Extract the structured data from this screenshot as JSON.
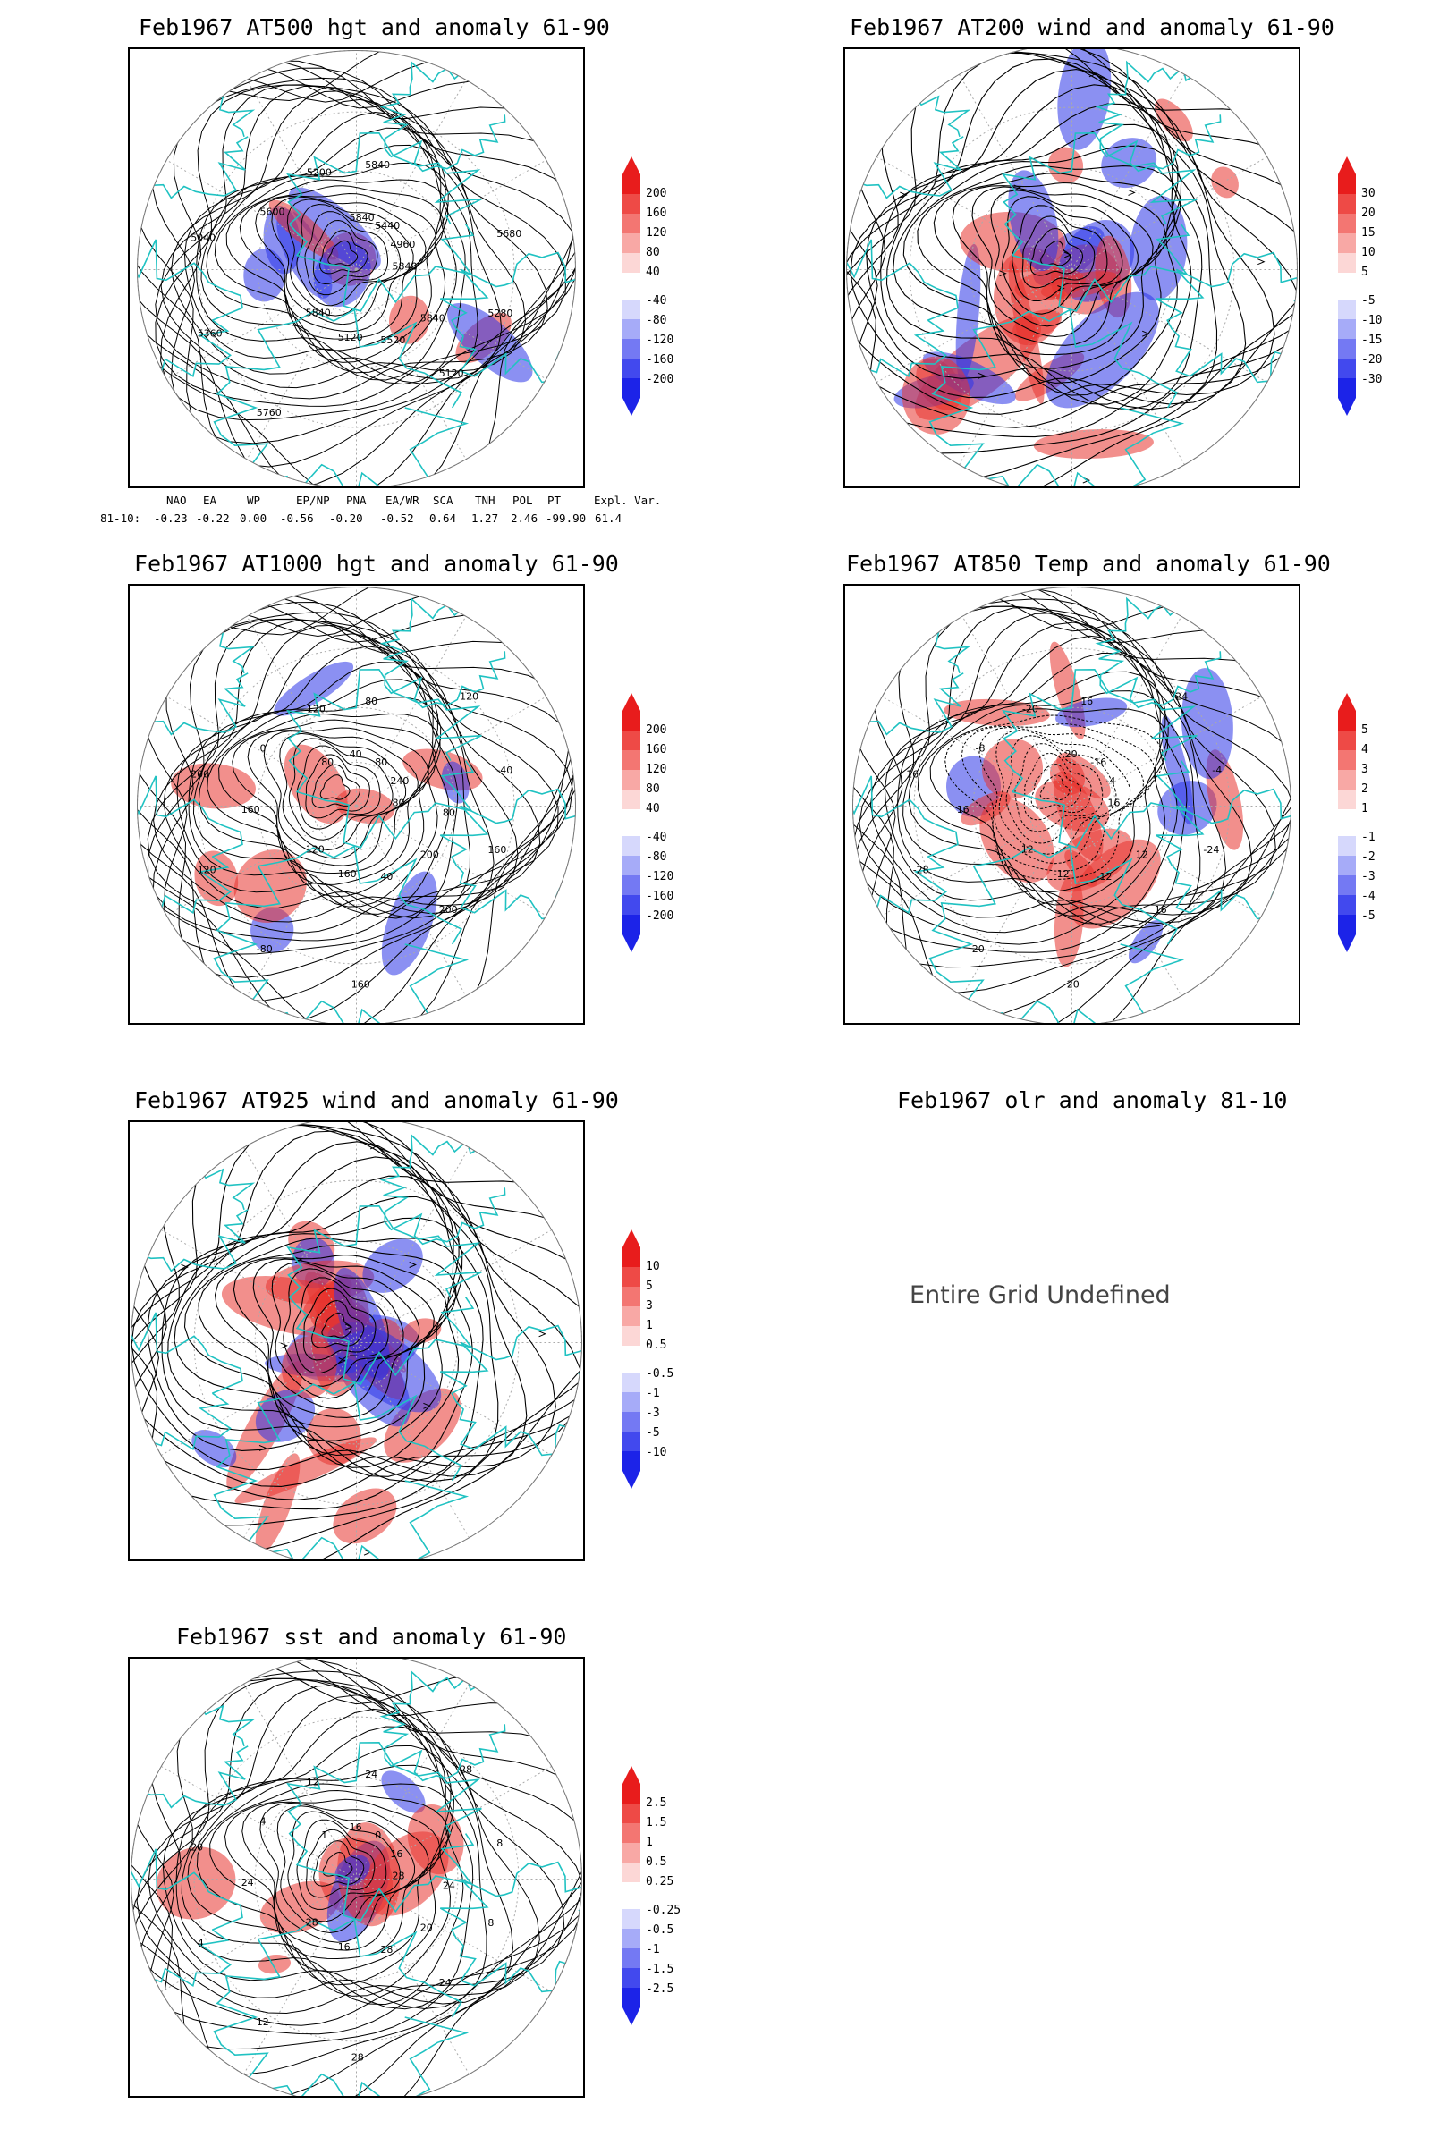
{
  "colors": {
    "coast": "#20c2c2",
    "contour": "#000000",
    "positive": "#e8332e",
    "negative": "#2b35e8",
    "grid": "#aaaaaa"
  },
  "panels": [
    {
      "id": "z500",
      "title": "Feb1967 AT500 hgt and anomaly 61-90",
      "kind": "height",
      "contour_labels": [
        "5840",
        "5840",
        "5840",
        "5120",
        "5040",
        "4960",
        "5120",
        "5200",
        "5280",
        "5360",
        "5440",
        "5520",
        "5600",
        "5680",
        "5760",
        "5840",
        "5840"
      ],
      "colorbar": [
        "200",
        "160",
        "120",
        "80",
        "40",
        "-40",
        "-80",
        "-120",
        "-160",
        "-200"
      ]
    },
    {
      "id": "u200",
      "title": "Feb1967 AT200 wind and anomaly 61-90",
      "kind": "wind",
      "contour_labels": [],
      "colorbar": [
        "30",
        "20",
        "15",
        "10",
        "5",
        "-5",
        "-10",
        "-15",
        "-20",
        "-30"
      ]
    },
    {
      "id": "z1000",
      "title": "Feb1967 AT1000 hgt and anomaly 61-90",
      "kind": "height",
      "contour_labels": [
        "80",
        "120",
        "80",
        "200",
        "200",
        "240",
        "160",
        "120",
        "160",
        "120",
        "80",
        "40",
        "0",
        "-40",
        "-80",
        "40",
        "200",
        "160",
        "120",
        "160",
        "80",
        "80"
      ],
      "colorbar": [
        "200",
        "160",
        "120",
        "80",
        "40",
        "-40",
        "-80",
        "-120",
        "-160",
        "-200"
      ]
    },
    {
      "id": "t850",
      "title": "Feb1967 AT850 Temp and anomaly 61-90",
      "kind": "temp",
      "contour_labels": [
        "16",
        "12",
        "16",
        "16",
        "16",
        "-4",
        "-12",
        "-20",
        "-24",
        "-28",
        "-16",
        "-12",
        "-8",
        "-4",
        "20",
        "20",
        "12",
        "16",
        "24",
        "20"
      ],
      "colorbar": [
        "5",
        "4",
        "3",
        "2",
        "1",
        "-1",
        "-2",
        "-3",
        "-4",
        "-5"
      ]
    },
    {
      "id": "u925",
      "title": "Feb1967 AT925 wind and anomaly 61-90",
      "kind": "wind",
      "contour_labels": [],
      "colorbar": [
        "10",
        "5",
        "3",
        "1",
        "0.5",
        "-0.5",
        "-1",
        "-3",
        "-5",
        "-10"
      ]
    },
    {
      "id": "olr",
      "title": "Feb1967 olr and anomaly 81-10",
      "kind": "undefined",
      "message": "Entire Grid Undefined"
    },
    {
      "id": "sst",
      "title": "Feb1967 sst and anomaly 61-90",
      "kind": "sst",
      "contour_labels": [
        "28",
        "28",
        "24",
        "24",
        "20",
        "16",
        "16",
        "12",
        "8",
        "4",
        "0",
        "28",
        "4",
        "8",
        "12",
        "16",
        "20",
        "24",
        "28",
        "28",
        "1",
        "24"
      ],
      "colorbar": [
        "2.5",
        "1.5",
        "1",
        "0.5",
        "0.25",
        "-0.25",
        "-0.5",
        "-1",
        "-1.5",
        "-2.5"
      ]
    }
  ],
  "teleconnections": {
    "headers": [
      "NAO",
      "EA",
      "WP",
      "EP/NP",
      "PNA",
      "EA/WR",
      "SCA",
      "TNH",
      "POL",
      "PT",
      "Expl. Var."
    ],
    "row_label": "81-10:",
    "values": [
      "-0.23",
      "-0.22",
      "0.00",
      "-0.56",
      "-0.20",
      "-0.52",
      "0.64",
      "1.27",
      "2.46",
      "-99.90",
      "61.4"
    ]
  },
  "chart_data": [
    {
      "type": "heatmap",
      "title": "Feb1967 AT500 hgt and anomaly 61-90",
      "levels": [
        200,
        160,
        120,
        80,
        40,
        -40,
        -80,
        -120,
        -160,
        -200
      ]
    },
    {
      "type": "heatmap",
      "title": "Feb1967 AT200 wind and anomaly 61-90",
      "levels": [
        30,
        20,
        15,
        10,
        5,
        -5,
        -10,
        -15,
        -20,
        -30
      ]
    },
    {
      "type": "heatmap",
      "title": "Feb1967 AT1000 hgt and anomaly 61-90",
      "levels": [
        200,
        160,
        120,
        80,
        40,
        -40,
        -80,
        -120,
        -160,
        -200
      ]
    },
    {
      "type": "heatmap",
      "title": "Feb1967 AT850 Temp and anomaly 61-90",
      "levels": [
        5,
        4,
        3,
        2,
        1,
        -1,
        -2,
        -3,
        -4,
        -5
      ]
    },
    {
      "type": "heatmap",
      "title": "Feb1967 AT925 wind and anomaly 61-90",
      "levels": [
        10,
        5,
        3,
        1,
        0.5,
        -0.5,
        -1,
        -3,
        -5,
        -10
      ]
    },
    {
      "type": "heatmap",
      "title": "Feb1967 olr and anomaly 81-10",
      "values": []
    },
    {
      "type": "heatmap",
      "title": "Feb1967 sst and anomaly 61-90",
      "levels": [
        2.5,
        1.5,
        1,
        0.5,
        0.25,
        -0.25,
        -0.5,
        -1,
        -1.5,
        -2.5
      ]
    }
  ]
}
